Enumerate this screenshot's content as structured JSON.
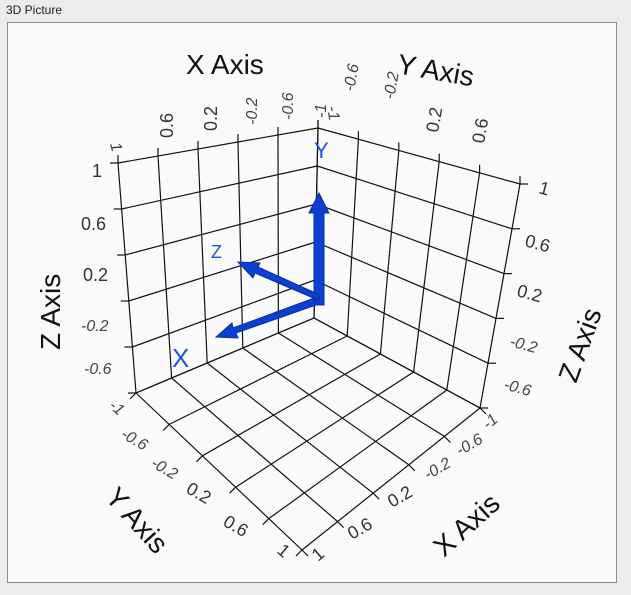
{
  "panel": {
    "title": "3D Picture"
  },
  "plot": {
    "axis_titles": {
      "x_top": "X Axis",
      "y_top": "Y Axis",
      "z_left": "Z Axis",
      "z_right": "Z Axis",
      "y_bottom": "Y Axis",
      "x_bottom": "X Axis"
    },
    "top_x_ticks": [
      "0.6",
      "0.2",
      "-0.2",
      "-0.6",
      "-1"
    ],
    "top_y_ticks": [
      "-1",
      "-0.6",
      "-0.2",
      "0.2",
      "0.6"
    ],
    "left_z_ticks": [
      "1",
      "0.6",
      "0.2",
      "-0.2",
      "-0.6"
    ],
    "right_z_ticks": [
      "1",
      "0.6",
      "0.2",
      "-0.2",
      "-0.6"
    ],
    "bottom_y_ticks": [
      "-1",
      "-0.6",
      "-0.2",
      "0.2",
      "0.6",
      "1"
    ],
    "bottom_x_ticks": [
      "1",
      "0.6",
      "0.2",
      "-0.2",
      "-0.6",
      "-1"
    ],
    "corner_top": "1",
    "triad_labels": {
      "x": "X",
      "y": "Y",
      "z": "Z"
    },
    "colors": {
      "triad": "#0a3fd1",
      "grid": "#000000"
    }
  }
}
